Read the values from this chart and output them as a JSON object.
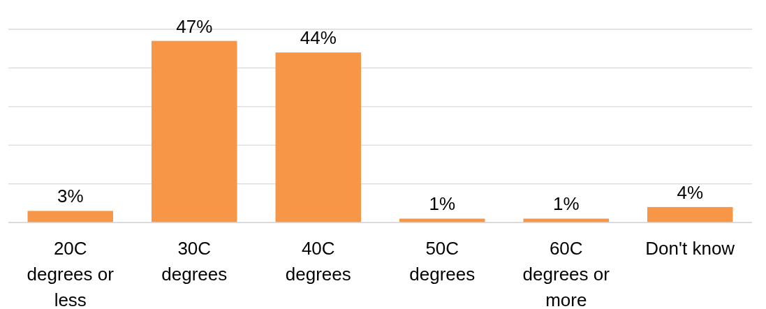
{
  "chart_data": {
    "type": "bar",
    "categories": [
      "20C degrees or less",
      "30C degrees",
      "40C degrees",
      "50C degrees",
      "60C degrees or more",
      "Don't know"
    ],
    "values": [
      3,
      47,
      44,
      1,
      1,
      4
    ],
    "color": "#f79646",
    "ylim": [
      0,
      50
    ],
    "yticks": [
      {
        "value": 0,
        "label": null
      },
      {
        "value": 10,
        "label": null
      },
      {
        "value": 20,
        "label": null
      },
      {
        "value": 30,
        "label": null
      },
      {
        "value": 40,
        "label": null
      },
      {
        "value": 50,
        "label": null
      }
    ],
    "grid": true,
    "tick_labels": "x",
    "value_labels": [
      "3%",
      "47%",
      "44%",
      "1%",
      "1%",
      "4%"
    ]
  }
}
